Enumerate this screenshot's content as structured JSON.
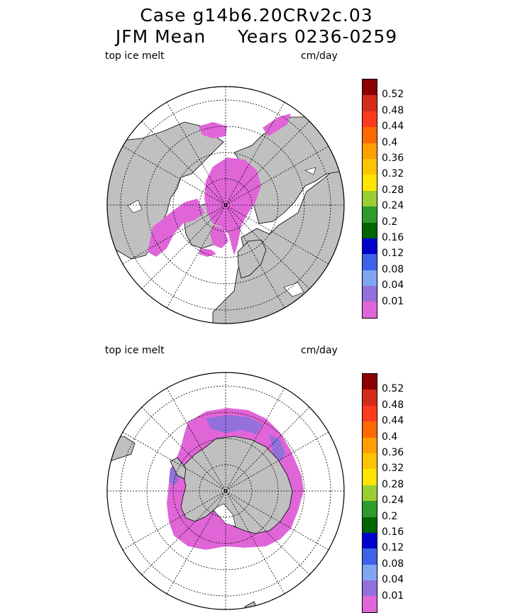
{
  "title": {
    "line1": "Case g14b6.20CRv2c.03",
    "line2": "JFM Mean     Years 0236-0259"
  },
  "colorbar": {
    "labels": [
      "0.52",
      "0.48",
      "0.44",
      "0.4",
      "0.36",
      "0.32",
      "0.28",
      "0.24",
      "0.2",
      "0.16",
      "0.12",
      "0.08",
      "0.04",
      "0.01"
    ],
    "colors": [
      "#8b0000",
      "#d42c1a",
      "#ff3b1f",
      "#ff6a00",
      "#ff9f00",
      "#ffc400",
      "#ffe500",
      "#9acd32",
      "#2e9b2e",
      "#006400",
      "#0000cd",
      "#3e63e8",
      "#7ea6f2",
      "#9370db",
      "#e066d8"
    ]
  },
  "panels": [
    {
      "id": "north",
      "variable": "top ice melt",
      "unit": "cm/day"
    },
    {
      "id": "south",
      "variable": "top ice melt",
      "unit": "cm/day"
    }
  ],
  "map_colors": {
    "land": "#c0c0c0",
    "ocean": "#ffffff",
    "ice_melt_low": "#e066d8",
    "ice_melt_mid": "#9370db"
  }
}
